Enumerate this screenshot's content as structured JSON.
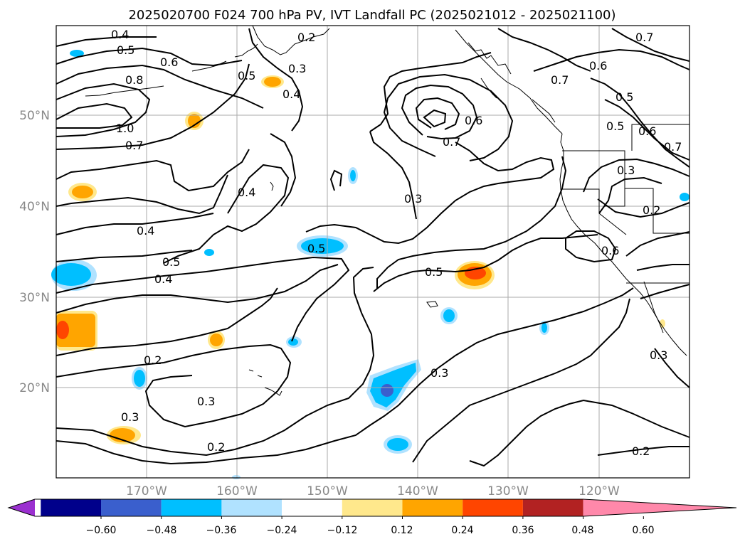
{
  "title": "2025020700 F024 700 hPa PV, IVT Landfall PC (2025021012 - 2025021100)",
  "lat_labels": [
    "50°N",
    "40°N",
    "30°N",
    "20°N"
  ],
  "lon_labels": [
    "170°W",
    "160°W",
    "150°W",
    "140°W",
    "130°W",
    "120°W"
  ],
  "colorbar": {
    "ticks": [
      "−0.60",
      "−0.48",
      "−0.36",
      "−0.24",
      "−0.12",
      "0.12",
      "0.24",
      "0.36",
      "0.48",
      "0.60"
    ],
    "colors": [
      "#9b30d0",
      "#00008b",
      "#3a5fcd",
      "#00bfff",
      "#b0e2ff",
      "#ffffff",
      "#ffe88c",
      "#ffa500",
      "#ff4500",
      "#b22222",
      "#ff88aa"
    ]
  },
  "contour_labels": [
    {
      "text": "0.4"
    },
    {
      "text": "0.5"
    },
    {
      "text": "0.6"
    },
    {
      "text": "0.8"
    },
    {
      "text": "1.0"
    },
    {
      "text": "0.7"
    },
    {
      "text": "0.5"
    },
    {
      "text": "0.4"
    },
    {
      "text": "0.3"
    },
    {
      "text": "0.2"
    },
    {
      "text": "0.4"
    },
    {
      "text": "0.4"
    },
    {
      "text": "0.5"
    },
    {
      "text": "0.4"
    },
    {
      "text": "0.5"
    },
    {
      "text": "0.3"
    },
    {
      "text": "0.6"
    },
    {
      "text": "0.7"
    },
    {
      "text": "0.7"
    },
    {
      "text": "0.6"
    },
    {
      "text": "0.5"
    },
    {
      "text": "0.7"
    },
    {
      "text": "0.5"
    },
    {
      "text": "0.6"
    },
    {
      "text": "0.7"
    },
    {
      "text": "0.3"
    },
    {
      "text": "0.2"
    },
    {
      "text": "0.6"
    },
    {
      "text": "0.5"
    },
    {
      "text": "0.2"
    },
    {
      "text": "0.3"
    },
    {
      "text": "0.3"
    },
    {
      "text": "0.2"
    },
    {
      "text": "0.3"
    },
    {
      "text": "0.2"
    },
    {
      "text": "0.3"
    }
  ]
}
